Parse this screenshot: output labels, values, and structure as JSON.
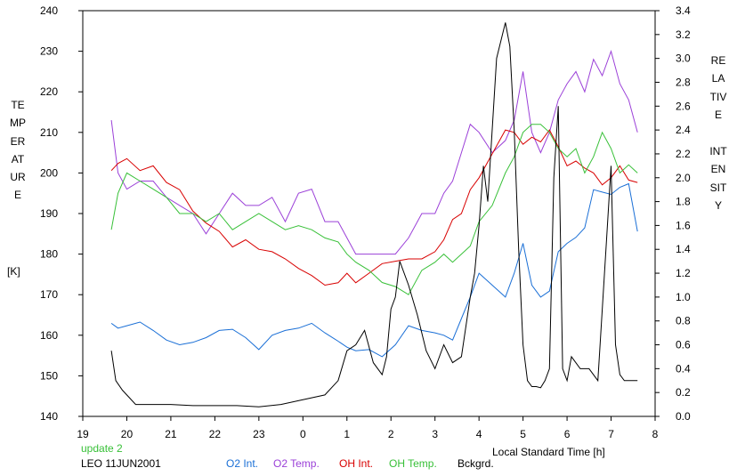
{
  "chart_data": {
    "type": "line",
    "left_axis_label": "TEMPERATURE",
    "left_axis_unit": "[K]",
    "right_axis_label": "RELATIVE INTENSITY",
    "xlabel": "Local Standard Time [h]",
    "status": "update 2",
    "station": "LEO 11JUN2001",
    "xlim": [
      19,
      8
    ],
    "x_ticks": [
      "19",
      "20",
      "21",
      "22",
      "23",
      "0",
      "1",
      "2",
      "3",
      "4",
      "5",
      "6",
      "7",
      "8"
    ],
    "ylim_left": [
      140,
      240
    ],
    "y_ticks_left": [
      "140",
      "150",
      "160",
      "170",
      "180",
      "190",
      "200",
      "210",
      "220",
      "230",
      "240"
    ],
    "ylim_right": [
      0.0,
      3.4
    ],
    "y_ticks_right": [
      "0.0",
      "0.2",
      "0.4",
      "0.6",
      "0.8",
      "1.0",
      "1.2",
      "1.4",
      "1.6",
      "1.8",
      "2.0",
      "2.2",
      "2.4",
      "2.6",
      "2.8",
      "3.0",
      "3.2",
      "3.4"
    ],
    "series": [
      {
        "name": "O2 Int.",
        "axis": "right",
        "color": "#1a6fd6",
        "x": [
          19.65,
          19.8,
          20.0,
          20.3,
          20.6,
          20.9,
          21.2,
          21.5,
          21.8,
          22.1,
          22.4,
          22.7,
          23.0,
          23.3,
          23.6,
          23.9,
          24.2,
          24.5,
          24.8,
          25.0,
          25.2,
          25.5,
          25.8,
          26.1,
          26.4,
          26.7,
          27.0,
          27.2,
          27.4,
          27.6,
          27.8,
          28.0,
          28.3,
          28.6,
          28.8,
          29.0,
          29.2,
          29.4,
          29.6,
          29.8,
          30.0,
          30.2,
          30.4,
          30.6,
          30.8,
          31.0,
          31.2,
          31.4,
          31.6
        ],
        "y": [
          0.78,
          0.74,
          0.76,
          0.79,
          0.72,
          0.64,
          0.6,
          0.62,
          0.66,
          0.72,
          0.73,
          0.66,
          0.56,
          0.68,
          0.72,
          0.74,
          0.78,
          0.7,
          0.63,
          0.58,
          0.55,
          0.56,
          0.5,
          0.6,
          0.76,
          0.72,
          0.7,
          0.68,
          0.64,
          0.82,
          1.0,
          1.2,
          1.1,
          1.0,
          1.2,
          1.45,
          1.1,
          1.0,
          1.05,
          1.38,
          1.45,
          1.5,
          1.58,
          1.9,
          1.88,
          1.86,
          1.92,
          1.95,
          1.55
        ]
      },
      {
        "name": "O2 Temp.",
        "axis": "left",
        "color": "#9b40d8",
        "x": [
          19.65,
          19.8,
          20.0,
          20.3,
          20.6,
          20.9,
          21.2,
          21.5,
          21.8,
          22.1,
          22.4,
          22.7,
          23.0,
          23.3,
          23.6,
          23.9,
          24.2,
          24.5,
          24.8,
          25.0,
          25.2,
          25.5,
          25.8,
          26.1,
          26.4,
          26.7,
          27.0,
          27.2,
          27.4,
          27.6,
          27.8,
          28.0,
          28.3,
          28.6,
          28.8,
          29.0,
          29.2,
          29.4,
          29.6,
          29.8,
          30.0,
          30.2,
          30.4,
          30.6,
          30.8,
          31.0,
          31.2,
          31.4,
          31.6
        ],
        "y": [
          213,
          200,
          196,
          198,
          198,
          194,
          192,
          190,
          185,
          190,
          195,
          192,
          192,
          194,
          188,
          195,
          196,
          188,
          188,
          184,
          180,
          180,
          180,
          180,
          184,
          190,
          190,
          195,
          198,
          205,
          212,
          210,
          205,
          208,
          213,
          225,
          210,
          205,
          210,
          218,
          222,
          225,
          220,
          228,
          224,
          230,
          222,
          218,
          210
        ]
      },
      {
        "name": "OH Int.",
        "axis": "right",
        "color": "#d80000",
        "x": [
          19.65,
          19.8,
          20.0,
          20.3,
          20.6,
          20.9,
          21.2,
          21.5,
          21.8,
          22.1,
          22.4,
          22.7,
          23.0,
          23.3,
          23.6,
          23.9,
          24.2,
          24.5,
          24.8,
          25.0,
          25.2,
          25.5,
          25.8,
          26.1,
          26.4,
          26.7,
          27.0,
          27.2,
          27.4,
          27.6,
          27.8,
          28.0,
          28.3,
          28.6,
          28.8,
          29.0,
          29.2,
          29.4,
          29.6,
          29.8,
          30.0,
          30.2,
          30.4,
          30.6,
          30.8,
          31.0,
          31.2,
          31.4,
          31.6
        ],
        "y": [
          2.06,
          2.12,
          2.16,
          2.06,
          2.1,
          1.96,
          1.9,
          1.72,
          1.62,
          1.55,
          1.42,
          1.48,
          1.4,
          1.38,
          1.32,
          1.24,
          1.18,
          1.1,
          1.12,
          1.2,
          1.12,
          1.2,
          1.28,
          1.3,
          1.32,
          1.32,
          1.38,
          1.48,
          1.65,
          1.7,
          1.9,
          2.0,
          2.2,
          2.4,
          2.38,
          2.28,
          2.34,
          2.3,
          2.4,
          2.26,
          2.1,
          2.14,
          2.08,
          2.04,
          1.94,
          2.0,
          2.1,
          1.98,
          1.96
        ]
      },
      {
        "name": "OH Temp.",
        "axis": "left",
        "color": "#38c038",
        "x": [
          19.65,
          19.8,
          20.0,
          20.3,
          20.6,
          20.9,
          21.2,
          21.5,
          21.8,
          22.1,
          22.4,
          22.7,
          23.0,
          23.3,
          23.6,
          23.9,
          24.2,
          24.5,
          24.8,
          25.0,
          25.2,
          25.5,
          25.8,
          26.1,
          26.4,
          26.7,
          27.0,
          27.2,
          27.4,
          27.6,
          27.8,
          28.0,
          28.3,
          28.6,
          28.8,
          29.0,
          29.2,
          29.4,
          29.6,
          29.8,
          30.0,
          30.2,
          30.4,
          30.6,
          30.8,
          31.0,
          31.2,
          31.4,
          31.6
        ],
        "y": [
          186,
          195,
          200,
          198,
          196,
          194,
          190,
          190,
          188,
          190,
          186,
          188,
          190,
          188,
          186,
          187,
          186,
          184,
          183,
          180,
          178,
          176,
          173,
          172,
          170,
          176,
          178,
          180,
          178,
          180,
          182,
          188,
          192,
          200,
          204,
          210,
          212,
          212,
          210,
          206,
          204,
          206,
          200,
          204,
          210,
          206,
          200,
          202,
          200
        ]
      },
      {
        "name": "Bckgrd.",
        "axis": "right",
        "color": "#000000",
        "x": [
          19.65,
          19.75,
          19.9,
          20.2,
          20.6,
          21.0,
          21.5,
          22.0,
          22.5,
          23.0,
          23.5,
          24.0,
          24.5,
          24.8,
          25.0,
          25.2,
          25.4,
          25.6,
          25.8,
          25.9,
          26.0,
          26.1,
          26.2,
          26.4,
          26.6,
          26.8,
          27.0,
          27.2,
          27.4,
          27.6,
          27.8,
          27.9,
          28.0,
          28.1,
          28.2,
          28.4,
          28.6,
          28.7,
          28.8,
          28.9,
          29.0,
          29.1,
          29.2,
          29.3,
          29.4,
          29.5,
          29.6,
          29.7,
          29.8,
          29.9,
          30.0,
          30.1,
          30.3,
          30.5,
          30.7,
          30.9,
          31.0,
          31.1,
          31.2,
          31.3,
          31.4,
          31.6
        ],
        "y": [
          0.55,
          0.3,
          0.22,
          0.1,
          0.1,
          0.1,
          0.09,
          0.09,
          0.09,
          0.08,
          0.1,
          0.14,
          0.18,
          0.3,
          0.55,
          0.6,
          0.72,
          0.45,
          0.35,
          0.5,
          0.9,
          1.0,
          1.3,
          1.1,
          0.85,
          0.55,
          0.4,
          0.6,
          0.45,
          0.5,
          1.0,
          1.2,
          1.6,
          2.1,
          1.8,
          3.0,
          3.3,
          3.1,
          2.4,
          1.4,
          0.6,
          0.3,
          0.25,
          0.25,
          0.24,
          0.3,
          0.4,
          2.0,
          2.6,
          0.4,
          0.3,
          0.5,
          0.4,
          0.4,
          0.3,
          1.5,
          2.1,
          0.6,
          0.35,
          0.3,
          0.3,
          0.3
        ]
      }
    ]
  }
}
